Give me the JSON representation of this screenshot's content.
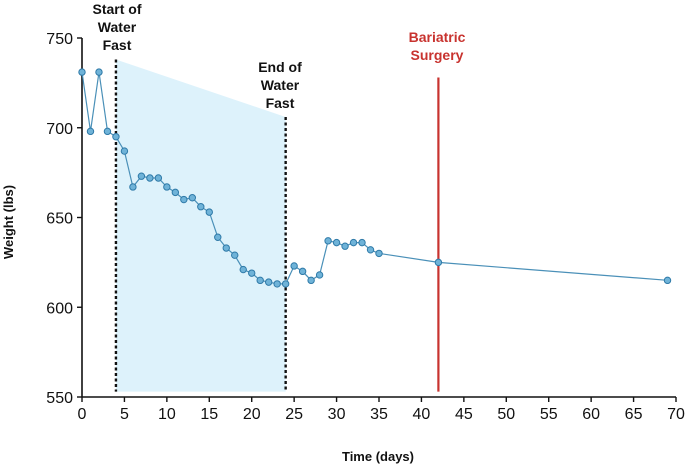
{
  "chart_data": {
    "type": "line",
    "xlabel": "Time (days)",
    "ylabel": "Weight (lbs)",
    "xlim": [
      0,
      70
    ],
    "ylim": [
      550,
      750
    ],
    "xticks": [
      0,
      5,
      10,
      15,
      20,
      25,
      30,
      35,
      40,
      45,
      50,
      55,
      60,
      65,
      70
    ],
    "yticks": [
      550,
      600,
      650,
      700,
      750
    ],
    "grid": false,
    "legend": "none",
    "colors": {
      "line": "#4a90b8",
      "point_fill": "#6fb3d8",
      "point_stroke": "#2f7aa8",
      "shade_fill": "#ddf2fb",
      "dashed_marker": "#111111",
      "surgery_marker": "#c8332f"
    },
    "series": [
      {
        "x": [
          0,
          1,
          2,
          3,
          4,
          5,
          6,
          7,
          8,
          9,
          10,
          11,
          12,
          13,
          14,
          15,
          16,
          17,
          18,
          19,
          20,
          21,
          22,
          23,
          24,
          25,
          26,
          27,
          28,
          29,
          30,
          31,
          32,
          33,
          34,
          35,
          42,
          69
        ],
        "y": [
          731,
          698,
          731,
          698,
          695,
          687,
          667,
          673,
          672,
          672,
          667,
          664,
          660,
          661,
          656,
          653,
          639,
          633,
          629,
          621,
          619,
          615,
          614,
          613,
          613,
          623,
          620,
          615,
          618,
          637,
          636,
          634,
          636,
          636,
          632,
          630,
          625,
          615
        ]
      }
    ],
    "shaded_region": {
      "x": [
        4,
        24
      ],
      "y_top": [
        738,
        706
      ],
      "y_bottom": 553
    },
    "annotations": [
      {
        "id": "start-water-fast",
        "x": 4,
        "lines": [
          "Start of",
          "Water",
          "Fast"
        ],
        "color": "black"
      },
      {
        "id": "end-water-fast",
        "x": 24,
        "lines": [
          "End of",
          "Water",
          "Fast"
        ],
        "color": "black"
      },
      {
        "id": "bariatric-surgery",
        "x": 42,
        "lines": [
          "Bariatric",
          "Surgery"
        ],
        "color": "red"
      }
    ],
    "vlines": [
      {
        "x": 4,
        "style": "dashed",
        "color": "black",
        "y_from": 738,
        "y_to": 553
      },
      {
        "x": 24,
        "style": "dashed",
        "color": "black",
        "y_from": 706,
        "y_to": 553
      },
      {
        "x": 42,
        "style": "solid",
        "color": "red",
        "y_from": 728,
        "y_to": 553
      }
    ]
  }
}
